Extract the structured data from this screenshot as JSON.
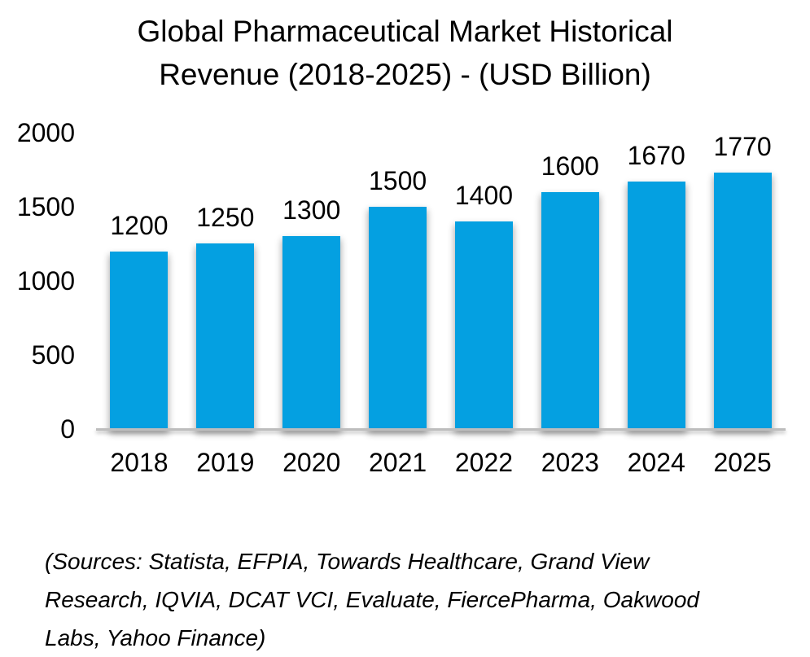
{
  "title": "Global Pharmaceutical Market Historical Revenue (2018-2025) - (USD Billion)",
  "chart_data": {
    "type": "bar",
    "categories": [
      "2018",
      "2019",
      "2020",
      "2021",
      "2022",
      "2023",
      "2024",
      "2025"
    ],
    "values": [
      1200,
      1250,
      1300,
      1500,
      1400,
      1600,
      1670,
      1770
    ],
    "title": "Global Pharmaceutical Market Historical Revenue (2018-2025) - (USD Billion)",
    "xlabel": "",
    "ylabel": "",
    "ylim": [
      0,
      2000
    ],
    "yticks": [
      0,
      500,
      1000,
      1500,
      2000
    ],
    "bar_color": "#04A0E1",
    "axis_color": "#BDBDBD",
    "data_labels": true,
    "grid": false,
    "legend": false
  },
  "source_note": "(Sources: Statista, EFPIA, Towards Healthcare, Grand View Research, IQVIA, DCAT VCI, Evaluate, FiercePharma, Oakwood Labs, Yahoo Finance)"
}
